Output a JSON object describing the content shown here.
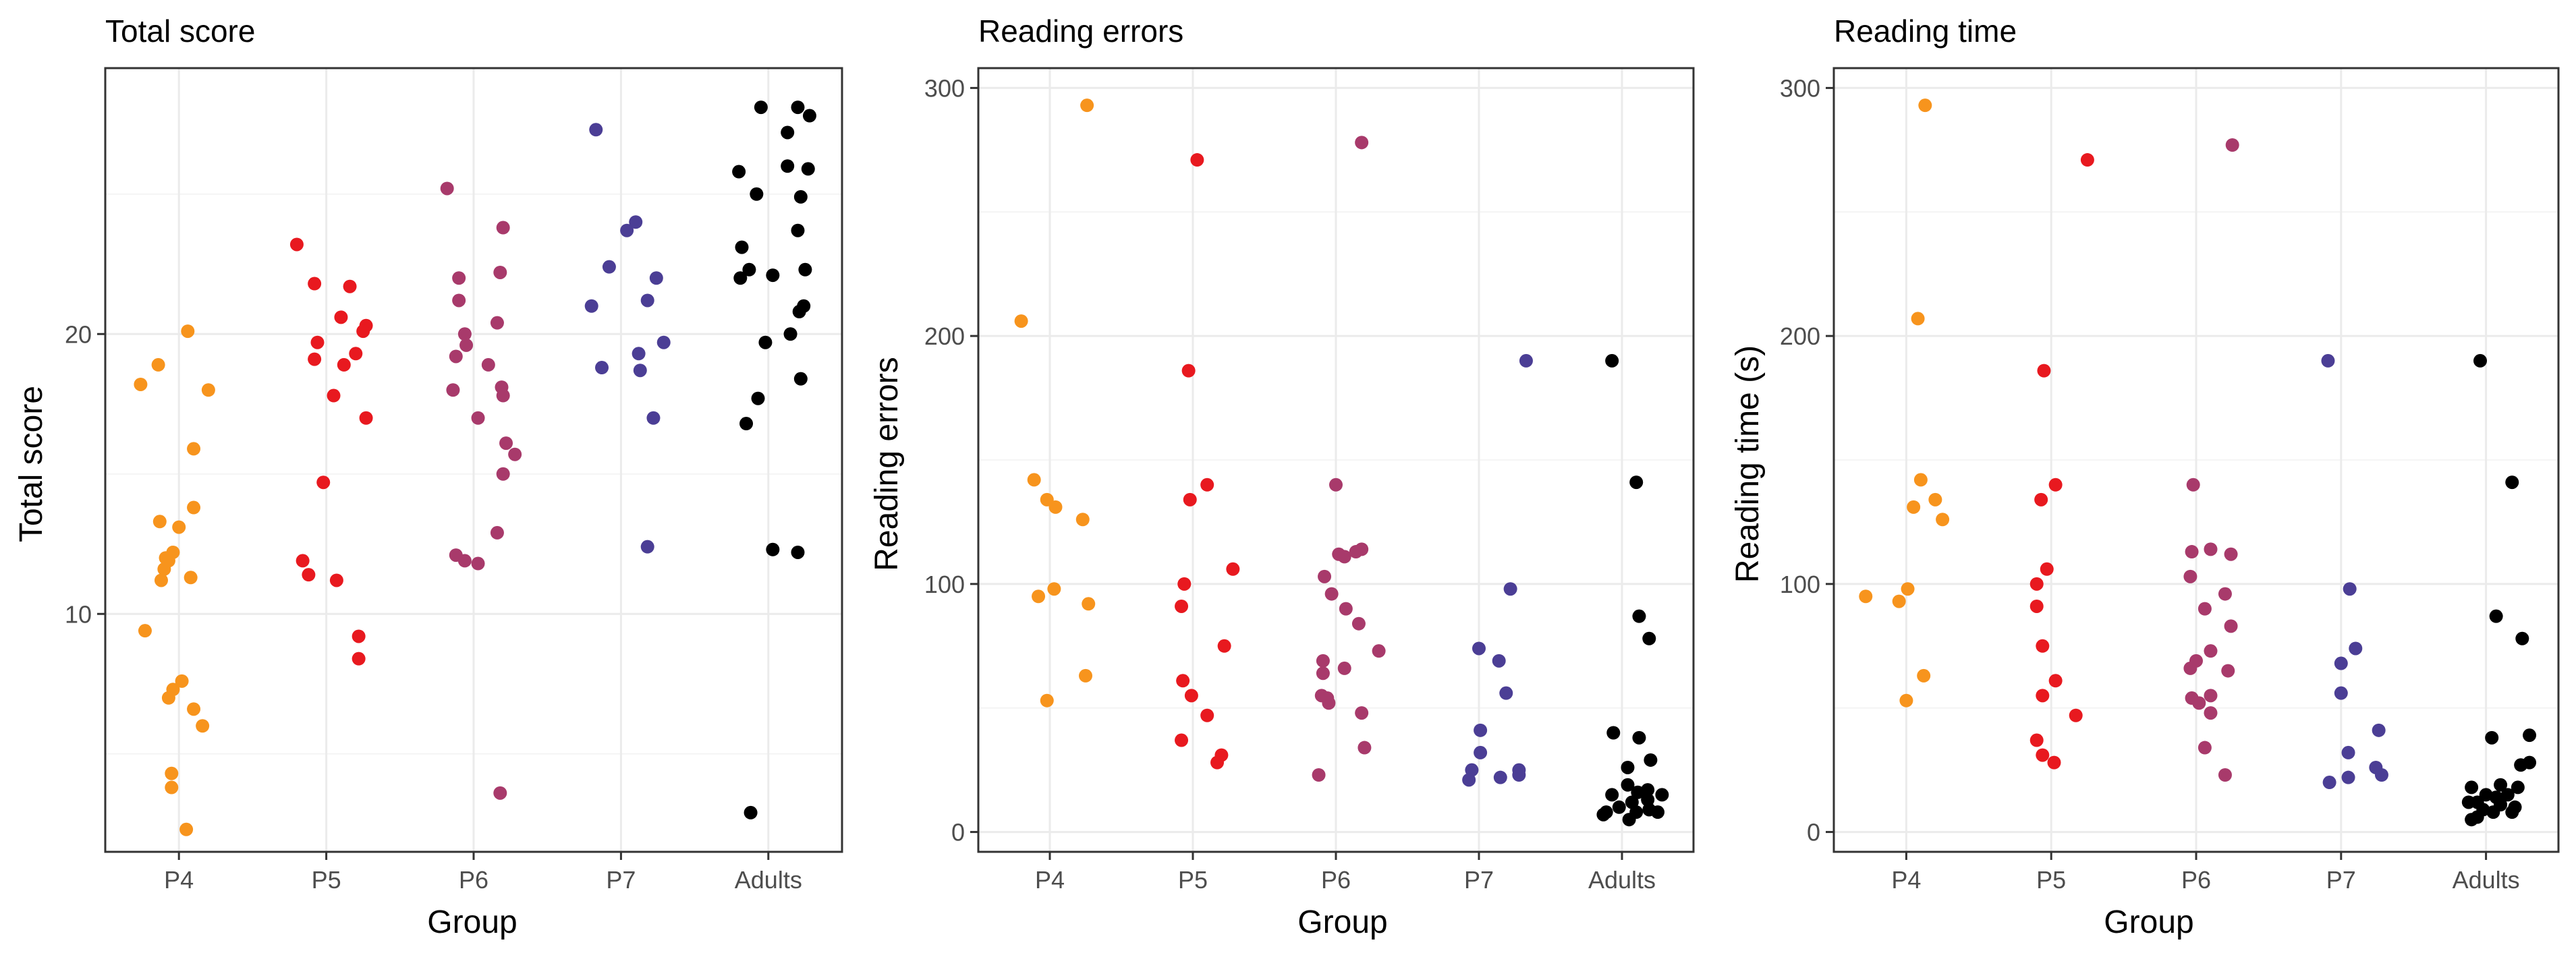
{
  "colors": {
    "P4": "#f7941d",
    "P5": "#e8191f",
    "P6": "#a83a6b",
    "P7": "#4b3e95",
    "Adults": "#000000"
  },
  "chart_data": [
    {
      "type": "scatter",
      "title": "Total score",
      "xlabel": "Group",
      "ylabel": "Total score",
      "categories": [
        "P4",
        "P5",
        "P6",
        "P7",
        "Adults"
      ],
      "ylim": [
        1.5,
        29.5
      ],
      "yticks": [
        10,
        20
      ],
      "grid": true,
      "legend": "none",
      "series": [
        {
          "category": "P4",
          "points": [
            [
              -0.26,
              18.2
            ],
            [
              -0.14,
              18.9
            ],
            [
              0.06,
              20.1
            ],
            [
              0.2,
              18
            ],
            [
              0.1,
              15.9
            ],
            [
              0.1,
              13.8
            ],
            [
              -0.13,
              13.3
            ],
            [
              0.0,
              13.1
            ],
            [
              -0.04,
              12.2
            ],
            [
              -0.09,
              12
            ],
            [
              -0.07,
              11.9
            ],
            [
              -0.1,
              11.6
            ],
            [
              -0.12,
              11.2
            ],
            [
              0.08,
              11.3
            ],
            [
              -0.23,
              9.4
            ],
            [
              0.02,
              7.6
            ],
            [
              -0.04,
              7.3
            ],
            [
              -0.07,
              7
            ],
            [
              0.1,
              6.6
            ],
            [
              0.16,
              6
            ],
            [
              -0.05,
              4.3
            ],
            [
              -0.05,
              3.8
            ],
            [
              0.05,
              2.3
            ]
          ]
        },
        {
          "category": "P5",
          "points": [
            [
              -0.2,
              23.2
            ],
            [
              -0.08,
              21.8
            ],
            [
              0.16,
              21.7
            ],
            [
              -0.06,
              19.7
            ],
            [
              0.1,
              20.6
            ],
            [
              0.27,
              20.3
            ],
            [
              0.25,
              20.1
            ],
            [
              0.2,
              19.3
            ],
            [
              -0.08,
              19.1
            ],
            [
              0.12,
              18.9
            ],
            [
              0.05,
              17.8
            ],
            [
              0.27,
              17
            ],
            [
              -0.02,
              14.7
            ],
            [
              -0.16,
              11.9
            ],
            [
              -0.12,
              11.4
            ],
            [
              0.07,
              11.2
            ],
            [
              0.22,
              9.2
            ],
            [
              0.22,
              8.4
            ]
          ]
        },
        {
          "category": "P6",
          "points": [
            [
              -0.18,
              25.2
            ],
            [
              0.2,
              23.8
            ],
            [
              -0.1,
              22
            ],
            [
              0.18,
              22.2
            ],
            [
              -0.1,
              21.2
            ],
            [
              0.16,
              20.4
            ],
            [
              -0.06,
              20
            ],
            [
              -0.05,
              19.6
            ],
            [
              0.19,
              18.1
            ],
            [
              0.2,
              17.8
            ],
            [
              -0.12,
              19.2
            ],
            [
              0.1,
              18.9
            ],
            [
              -0.14,
              18
            ],
            [
              0.03,
              17
            ],
            [
              0.22,
              16.1
            ],
            [
              0.28,
              15.7
            ],
            [
              0.2,
              15
            ],
            [
              0.16,
              12.9
            ],
            [
              -0.12,
              12.1
            ],
            [
              -0.06,
              11.9
            ],
            [
              0.03,
              11.8
            ],
            [
              0.18,
              3.6
            ]
          ]
        },
        {
          "category": "P7",
          "points": [
            [
              -0.17,
              27.3
            ],
            [
              0.1,
              24
            ],
            [
              0.04,
              23.7
            ],
            [
              -0.08,
              22.4
            ],
            [
              0.24,
              22
            ],
            [
              0.18,
              21.2
            ],
            [
              -0.2,
              21
            ],
            [
              0.29,
              19.7
            ],
            [
              0.12,
              19.3
            ],
            [
              -0.13,
              18.8
            ],
            [
              0.13,
              18.7
            ],
            [
              0.22,
              17
            ],
            [
              0.18,
              12.4
            ]
          ]
        },
        {
          "category": "Adults",
          "points": [
            [
              -0.05,
              28.1
            ],
            [
              0.2,
              28.1
            ],
            [
              0.28,
              27.8
            ],
            [
              0.13,
              27.2
            ],
            [
              -0.2,
              25.8
            ],
            [
              0.13,
              26
            ],
            [
              0.27,
              25.9
            ],
            [
              -0.08,
              25
            ],
            [
              0.22,
              24.9
            ],
            [
              0.2,
              23.7
            ],
            [
              -0.18,
              23.1
            ],
            [
              -0.13,
              22.3
            ],
            [
              0.03,
              22.1
            ],
            [
              0.25,
              22.3
            ],
            [
              -0.19,
              22
            ],
            [
              0.24,
              21
            ],
            [
              0.21,
              20.8
            ],
            [
              0.15,
              20
            ],
            [
              -0.02,
              19.7
            ],
            [
              0.22,
              18.4
            ],
            [
              -0.07,
              17.7
            ],
            [
              -0.15,
              16.8
            ],
            [
              0.03,
              12.3
            ],
            [
              0.2,
              12.2
            ],
            [
              -0.12,
              2.9
            ]
          ]
        }
      ]
    },
    {
      "type": "scatter",
      "title": "Reading errors",
      "xlabel": "Group",
      "ylabel": "Reading errors",
      "categories": [
        "P4",
        "P5",
        "P6",
        "P7",
        "Adults"
      ],
      "ylim": [
        -8,
        308
      ],
      "yticks": [
        0,
        100,
        200,
        300
      ],
      "grid": true,
      "legend": "none",
      "series": [
        {
          "category": "P4",
          "points": [
            [
              0.26,
              293
            ],
            [
              -0.2,
              206
            ],
            [
              -0.11,
              142
            ],
            [
              -0.02,
              134
            ],
            [
              0.04,
              131
            ],
            [
              0.23,
              126
            ],
            [
              0.03,
              98
            ],
            [
              -0.08,
              95
            ],
            [
              0.27,
              92
            ],
            [
              0.25,
              63
            ],
            [
              -0.02,
              53
            ]
          ]
        },
        {
          "category": "P5",
          "points": [
            [
              0.03,
              271
            ],
            [
              -0.03,
              186
            ],
            [
              0.1,
              140
            ],
            [
              -0.02,
              134
            ],
            [
              0.28,
              106
            ],
            [
              -0.06,
              100
            ],
            [
              -0.08,
              91
            ],
            [
              0.22,
              75
            ],
            [
              -0.07,
              61
            ],
            [
              -0.01,
              55
            ],
            [
              0.1,
              47
            ],
            [
              -0.08,
              37
            ],
            [
              0.2,
              31
            ],
            [
              0.17,
              28
            ]
          ]
        },
        {
          "category": "P6",
          "points": [
            [
              0.18,
              278
            ],
            [
              0.0,
              140
            ],
            [
              0.18,
              114
            ],
            [
              0.14,
              113
            ],
            [
              0.02,
              112
            ],
            [
              0.06,
              111
            ],
            [
              -0.08,
              103
            ],
            [
              -0.03,
              96
            ],
            [
              0.07,
              90
            ],
            [
              0.16,
              84
            ],
            [
              0.3,
              73
            ],
            [
              -0.09,
              69
            ],
            [
              -0.09,
              64
            ],
            [
              0.06,
              66
            ],
            [
              -0.1,
              55
            ],
            [
              -0.06,
              54
            ],
            [
              -0.05,
              52
            ],
            [
              0.18,
              48
            ],
            [
              0.2,
              34
            ],
            [
              -0.12,
              23
            ]
          ]
        },
        {
          "category": "P7",
          "points": [
            [
              0.33,
              190
            ],
            [
              0.22,
              98
            ],
            [
              0.0,
              74
            ],
            [
              0.14,
              69
            ],
            [
              0.19,
              56
            ],
            [
              0.01,
              41
            ],
            [
              0.01,
              32
            ],
            [
              0.28,
              25
            ],
            [
              0.28,
              23
            ],
            [
              -0.05,
              25
            ],
            [
              -0.07,
              21
            ],
            [
              0.15,
              22
            ]
          ]
        },
        {
          "category": "Adults",
          "points": [
            [
              -0.07,
              190
            ],
            [
              0.1,
              141
            ],
            [
              0.12,
              87
            ],
            [
              0.19,
              78
            ],
            [
              -0.06,
              40
            ],
            [
              0.12,
              38
            ],
            [
              0.04,
              26
            ],
            [
              0.2,
              29
            ],
            [
              0.04,
              19
            ],
            [
              0.18,
              17
            ],
            [
              0.28,
              15
            ],
            [
              0.11,
              16
            ],
            [
              0.18,
              13
            ],
            [
              0.07,
              12
            ],
            [
              -0.07,
              15
            ],
            [
              -0.02,
              10
            ],
            [
              0.19,
              9
            ],
            [
              0.25,
              8
            ],
            [
              -0.13,
              7
            ],
            [
              -0.11,
              8
            ],
            [
              0.05,
              5
            ],
            [
              0.1,
              8
            ]
          ]
        }
      ]
    },
    {
      "type": "scatter",
      "title": "Reading time",
      "xlabel": "Group",
      "ylabel": "Reading time (s)",
      "categories": [
        "P4",
        "P5",
        "P6",
        "P7",
        "Adults"
      ],
      "ylim": [
        -8,
        308
      ],
      "yticks": [
        0,
        100,
        200,
        300
      ],
      "grid": true,
      "legend": "none",
      "series": [
        {
          "category": "P4",
          "points": [
            [
              0.13,
              293
            ],
            [
              0.08,
              207
            ],
            [
              0.1,
              142
            ],
            [
              0.2,
              134
            ],
            [
              0.05,
              131
            ],
            [
              0.25,
              126
            ],
            [
              0.01,
              98
            ],
            [
              -0.05,
              93
            ],
            [
              -0.28,
              95
            ],
            [
              0.12,
              63
            ],
            [
              0.0,
              53
            ]
          ]
        },
        {
          "category": "P5",
          "points": [
            [
              0.25,
              271
            ],
            [
              -0.05,
              186
            ],
            [
              0.03,
              140
            ],
            [
              -0.07,
              134
            ],
            [
              -0.03,
              106
            ],
            [
              -0.1,
              100
            ],
            [
              -0.1,
              91
            ],
            [
              -0.06,
              75
            ],
            [
              0.03,
              61
            ],
            [
              -0.06,
              55
            ],
            [
              0.17,
              47
            ],
            [
              -0.1,
              37
            ],
            [
              -0.06,
              31
            ],
            [
              0.02,
              28
            ]
          ]
        },
        {
          "category": "P6",
          "points": [
            [
              0.25,
              277
            ],
            [
              -0.02,
              140
            ],
            [
              0.1,
              114
            ],
            [
              -0.03,
              113
            ],
            [
              0.24,
              112
            ],
            [
              -0.04,
              103
            ],
            [
              0.2,
              96
            ],
            [
              0.06,
              90
            ],
            [
              0.24,
              83
            ],
            [
              0.1,
              73
            ],
            [
              0.0,
              69
            ],
            [
              -0.04,
              66
            ],
            [
              0.22,
              65
            ],
            [
              0.1,
              55
            ],
            [
              -0.03,
              54
            ],
            [
              0.02,
              52
            ],
            [
              0.1,
              48
            ],
            [
              0.06,
              34
            ],
            [
              0.2,
              23
            ]
          ]
        },
        {
          "category": "P7",
          "points": [
            [
              -0.09,
              190
            ],
            [
              0.06,
              98
            ],
            [
              0.1,
              74
            ],
            [
              0.0,
              68
            ],
            [
              0.0,
              56
            ],
            [
              0.26,
              41
            ],
            [
              0.05,
              32
            ],
            [
              0.24,
              26
            ],
            [
              0.28,
              23
            ],
            [
              0.05,
              22
            ],
            [
              -0.08,
              20
            ]
          ]
        },
        {
          "category": "Adults",
          "points": [
            [
              -0.04,
              190
            ],
            [
              0.18,
              141
            ],
            [
              0.07,
              87
            ],
            [
              0.25,
              78
            ],
            [
              0.04,
              38
            ],
            [
              0.3,
              39
            ],
            [
              0.3,
              28
            ],
            [
              0.24,
              27
            ],
            [
              0.1,
              19
            ],
            [
              -0.1,
              18
            ],
            [
              0.22,
              18
            ],
            [
              0.0,
              15
            ],
            [
              0.07,
              14
            ],
            [
              0.15,
              15
            ],
            [
              -0.12,
              12
            ],
            [
              -0.06,
              12
            ],
            [
              0.1,
              11
            ],
            [
              0.2,
              10
            ],
            [
              -0.02,
              9
            ],
            [
              0.05,
              8
            ],
            [
              0.18,
              8
            ],
            [
              -0.06,
              6
            ],
            [
              -0.1,
              5
            ]
          ]
        }
      ]
    }
  ]
}
